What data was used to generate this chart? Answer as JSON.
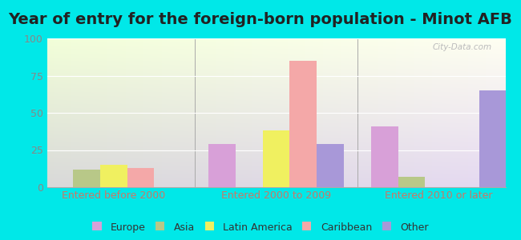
{
  "title": "Year of entry for the foreign-born population - Minot AFB",
  "categories": [
    "Entered before 2000",
    "Entered 2000 to 2009",
    "Entered 2010 or later"
  ],
  "series": {
    "Europe": [
      0,
      29,
      41
    ],
    "Asia": [
      12,
      0,
      7
    ],
    "Latin America": [
      15,
      38,
      0
    ],
    "Caribbean": [
      13,
      85,
      0
    ],
    "Other": [
      0,
      29,
      65
    ]
  },
  "colors": {
    "Europe": "#d8a0d8",
    "Asia": "#b8c888",
    "Latin America": "#f0f060",
    "Caribbean": "#f4a8a8",
    "Other": "#a898d8"
  },
  "ylim": [
    0,
    100
  ],
  "yticks": [
    0,
    25,
    50,
    75,
    100
  ],
  "background_color": "#00e8e8",
  "title_fontsize": 14,
  "axis_label_fontsize": 9,
  "legend_fontsize": 9,
  "bar_width": 0.13,
  "watermark": "City-Data.com",
  "xtick_color": "#cc7766",
  "ytick_color": "#888888"
}
